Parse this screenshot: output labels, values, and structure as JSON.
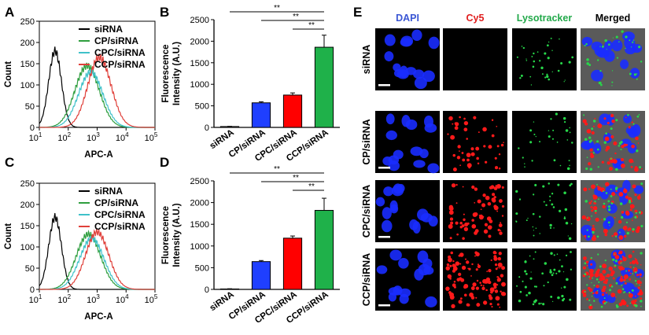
{
  "panels": {
    "A": "A",
    "B": "B",
    "C": "C",
    "D": "D",
    "E": "E"
  },
  "flow": {
    "ylabel": "Count",
    "xlabel": "APC-A",
    "y_ticks": [
      "0",
      "50",
      "100",
      "150",
      "200",
      "250"
    ],
    "x_tick_base": "10",
    "x_tick_exps": [
      "1",
      "2",
      "3",
      "4",
      "5"
    ],
    "legend": [
      "siRNA",
      "CP/siRNA",
      "CPC/siRNA",
      "CCP/siRNA"
    ],
    "colors": [
      "#000000",
      "#2e9e3e",
      "#3fc1c9",
      "#e0403a"
    ]
  },
  "bars": {
    "ylabel_line1": "Fluorescence",
    "ylabel_line2": "Intensity (A.U.)",
    "y_ticks": [
      "0",
      "500",
      "1000",
      "1500",
      "2000",
      "2500"
    ],
    "categories": [
      "siRNA",
      "CP/siRNA",
      "CPC/siRNA",
      "CCP/siRNA"
    ],
    "colors": [
      "#1f3fff",
      "#ff0000",
      "#1fb14a"
    ],
    "significance": [
      "**",
      "**",
      "**"
    ]
  },
  "chart_data": [
    {
      "panel": "A",
      "type": "line",
      "xlabel": "APC-A",
      "ylabel": "Count",
      "x_scale": "log",
      "xlim": [
        10,
        100000
      ],
      "ylim": [
        0,
        250
      ],
      "series": [
        {
          "name": "siRNA",
          "peak_x": 35,
          "peak_y": 180
        },
        {
          "name": "CP/siRNA",
          "peak_x": 450,
          "peak_y": 145
        },
        {
          "name": "CPC/siRNA",
          "peak_x": 600,
          "peak_y": 130
        },
        {
          "name": "CCP/siRNA",
          "peak_x": 1200,
          "peak_y": 165
        }
      ],
      "legend_position": "top-right"
    },
    {
      "panel": "B",
      "type": "bar",
      "ylabel": "Fluorescence Intensity (A.U.)",
      "ylim": [
        0,
        2500
      ],
      "categories": [
        "siRNA",
        "CP/siRNA",
        "CPC/siRNA",
        "CCP/siRNA"
      ],
      "values": [
        20,
        570,
        750,
        1860
      ],
      "errors": [
        5,
        25,
        50,
        280
      ],
      "annotations": [
        "**",
        "**",
        "**"
      ]
    },
    {
      "panel": "C",
      "type": "line",
      "xlabel": "APC-A",
      "ylabel": "Count",
      "x_scale": "log",
      "xlim": [
        10,
        100000
      ],
      "ylim": [
        0,
        250
      ],
      "series": [
        {
          "name": "siRNA",
          "peak_x": 35,
          "peak_y": 170
        },
        {
          "name": "CP/siRNA",
          "peak_x": 500,
          "peak_y": 130
        },
        {
          "name": "CPC/siRNA",
          "peak_x": 650,
          "peak_y": 120
        },
        {
          "name": "CCP/siRNA",
          "peak_x": 1000,
          "peak_y": 135
        }
      ],
      "legend_position": "top-right"
    },
    {
      "panel": "D",
      "type": "bar",
      "ylabel": "Fluorescence Intensity (A.U.)",
      "ylim": [
        0,
        2500
      ],
      "categories": [
        "siRNA",
        "CP/siRNA",
        "CPC/siRNA",
        "CCP/siRNA"
      ],
      "values": [
        10,
        640,
        1180,
        1820
      ],
      "errors": [
        5,
        25,
        50,
        280
      ],
      "annotations": [
        "**",
        "**",
        "**"
      ]
    }
  ],
  "micro": {
    "columns": [
      "DAPI",
      "Cy5",
      "Lysotracker",
      "Merged"
    ],
    "column_colors": [
      "#3a56d4",
      "#e01e1e",
      "#22a94a",
      "#000000"
    ],
    "rows": [
      "siRNA",
      "CP/siRNA",
      "CPC/siRNA",
      "CCP/siRNA"
    ]
  }
}
